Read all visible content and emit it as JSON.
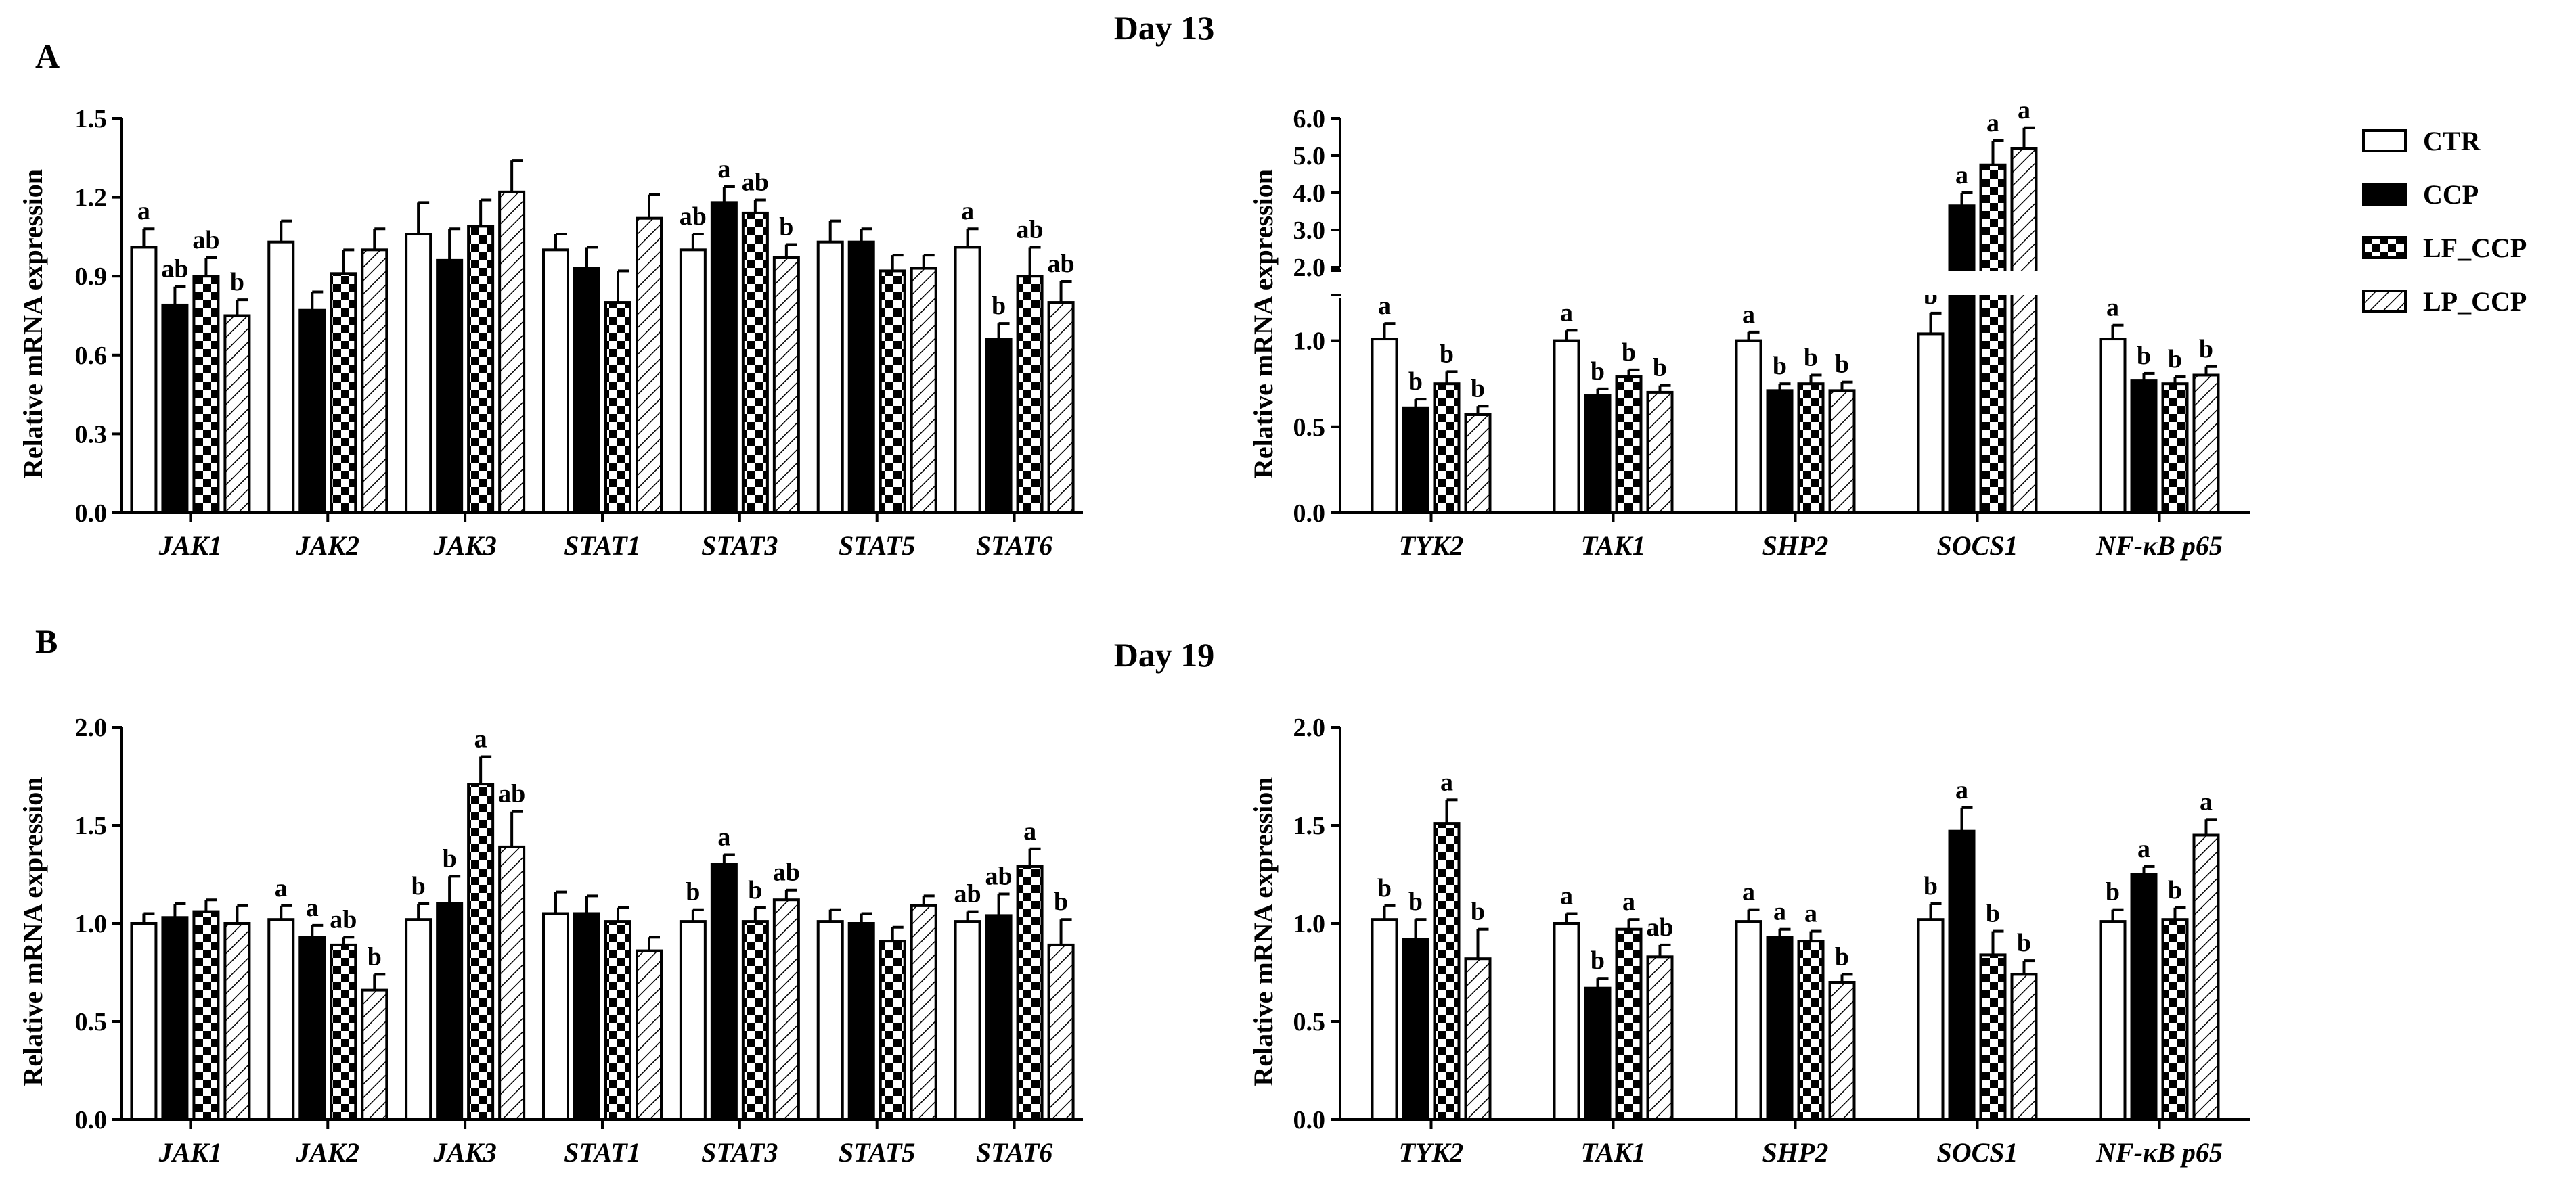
{
  "titles": {
    "day13": "Day 13",
    "day19": "Day 19",
    "panel_a": "A",
    "panel_b": "B"
  },
  "legend": [
    {
      "name": "CTR",
      "pattern": "open"
    },
    {
      "name": "CCP",
      "pattern": "solid"
    },
    {
      "name": "LF_CCP",
      "pattern": "checker"
    },
    {
      "name": "LP_CCP",
      "pattern": "hatch"
    }
  ],
  "chart_data": [
    {
      "type": "bar",
      "id": "A-left",
      "ylabel": "Relative mRNA expression",
      "ylim": [
        0,
        1.5
      ],
      "yticks": [
        "0.0",
        "0.3",
        "0.6",
        "0.9",
        "1.2",
        "1.5"
      ],
      "categories": [
        "JAK1",
        "JAK2",
        "JAK3",
        "STAT1",
        "STAT3",
        "STAT5",
        "STAT6"
      ],
      "series": [
        {
          "name": "CTR",
          "values": [
            1.01,
            1.03,
            1.06,
            1.0,
            1.0,
            1.03,
            1.01
          ],
          "errors": [
            0.07,
            0.08,
            0.12,
            0.06,
            0.06,
            0.08,
            0.07
          ]
        },
        {
          "name": "CCP",
          "values": [
            0.79,
            0.77,
            0.96,
            0.93,
            1.18,
            1.03,
            0.66
          ],
          "errors": [
            0.07,
            0.07,
            0.12,
            0.08,
            0.06,
            0.05,
            0.06
          ]
        },
        {
          "name": "LF_CCP",
          "values": [
            0.9,
            0.91,
            1.09,
            0.8,
            1.14,
            0.92,
            0.9
          ],
          "errors": [
            0.07,
            0.09,
            0.1,
            0.12,
            0.05,
            0.06,
            0.11
          ]
        },
        {
          "name": "LP_CCP",
          "values": [
            0.75,
            1.0,
            1.22,
            1.12,
            0.97,
            0.93,
            0.8
          ],
          "errors": [
            0.06,
            0.08,
            0.12,
            0.09,
            0.05,
            0.05,
            0.08
          ]
        }
      ],
      "significance": [
        [
          "a",
          "",
          "",
          "",
          "ab",
          "",
          "a"
        ],
        [
          "ab",
          "",
          "",
          "",
          "a",
          "",
          "b"
        ],
        [
          "ab",
          "",
          "",
          "",
          "ab",
          "",
          "ab"
        ],
        [
          "b",
          "",
          "",
          "",
          "b",
          "",
          "ab"
        ]
      ]
    },
    {
      "type": "bar",
      "id": "A-right",
      "ylabel": "Relative mRNA expression",
      "ylim": [
        0,
        6.0
      ],
      "axis_break": [
        1.25,
        2.0
      ],
      "yticks": [
        "0.0",
        "0.5",
        "1.0",
        "2.0",
        "3.0",
        "4.0",
        "5.0",
        "6.0"
      ],
      "categories": [
        "TYK2",
        "TAK1",
        "SHP2",
        "SOCS1",
        "NF-κB p65"
      ],
      "series": [
        {
          "name": "CTR",
          "values": [
            1.01,
            1.0,
            1.0,
            1.04,
            1.01
          ],
          "errors": [
            0.09,
            0.06,
            0.05,
            0.12,
            0.08
          ]
        },
        {
          "name": "CCP",
          "values": [
            0.61,
            0.68,
            0.71,
            3.65,
            0.77
          ],
          "errors": [
            0.05,
            0.04,
            0.04,
            0.35,
            0.04
          ]
        },
        {
          "name": "LF_CCP",
          "values": [
            0.75,
            0.79,
            0.75,
            4.75,
            0.75
          ],
          "errors": [
            0.07,
            0.04,
            0.05,
            0.65,
            0.04
          ]
        },
        {
          "name": "LP_CCP",
          "values": [
            0.57,
            0.7,
            0.71,
            5.2,
            0.8
          ],
          "errors": [
            0.05,
            0.04,
            0.05,
            0.55,
            0.05
          ]
        }
      ],
      "significance": [
        [
          "a",
          "a",
          "a",
          "b",
          "a"
        ],
        [
          "b",
          "b",
          "b",
          "a",
          "b"
        ],
        [
          "b",
          "b",
          "b",
          "a",
          "b"
        ],
        [
          "b",
          "b",
          "b",
          "a",
          "b"
        ]
      ]
    },
    {
      "type": "bar",
      "id": "B-left",
      "ylabel": "Relative mRNA expression",
      "ylim": [
        0,
        2.0
      ],
      "yticks": [
        "0.0",
        "0.5",
        "1.0",
        "1.5",
        "2.0"
      ],
      "categories": [
        "JAK1",
        "JAK2",
        "JAK3",
        "STAT1",
        "STAT3",
        "STAT5",
        "STAT6"
      ],
      "series": [
        {
          "name": "CTR",
          "values": [
            1.0,
            1.02,
            1.02,
            1.05,
            1.01,
            1.01,
            1.01
          ],
          "errors": [
            0.05,
            0.07,
            0.08,
            0.11,
            0.06,
            0.06,
            0.05
          ]
        },
        {
          "name": "CCP",
          "values": [
            1.03,
            0.93,
            1.1,
            1.05,
            1.3,
            1.0,
            1.04
          ],
          "errors": [
            0.07,
            0.06,
            0.14,
            0.09,
            0.05,
            0.05,
            0.11
          ]
        },
        {
          "name": "LF_CCP",
          "values": [
            1.06,
            0.89,
            1.71,
            1.01,
            1.01,
            0.91,
            1.29
          ],
          "errors": [
            0.06,
            0.04,
            0.14,
            0.07,
            0.07,
            0.07,
            0.09
          ]
        },
        {
          "name": "LP_CCP",
          "values": [
            1.0,
            0.66,
            1.39,
            0.86,
            1.12,
            1.09,
            0.89
          ],
          "errors": [
            0.09,
            0.08,
            0.18,
            0.07,
            0.05,
            0.05,
            0.13
          ]
        }
      ],
      "significance": [
        [
          "",
          "a",
          "b",
          "",
          "b",
          "",
          "ab"
        ],
        [
          "",
          "a",
          "b",
          "",
          "a",
          "",
          "ab"
        ],
        [
          "",
          "ab",
          "a",
          "",
          "b",
          "",
          "a"
        ],
        [
          "",
          "b",
          "ab",
          "",
          "ab",
          "",
          "b"
        ]
      ]
    },
    {
      "type": "bar",
      "id": "B-right",
      "ylabel": "Relative mRNA expression",
      "ylim": [
        0,
        2.0
      ],
      "yticks": [
        "0.0",
        "0.5",
        "1.0",
        "1.5",
        "2.0"
      ],
      "categories": [
        "TYK2",
        "TAK1",
        "SHP2",
        "SOCS1",
        "NF-κB p65"
      ],
      "series": [
        {
          "name": "CTR",
          "values": [
            1.02,
            1.0,
            1.01,
            1.02,
            1.01
          ],
          "errors": [
            0.07,
            0.05,
            0.06,
            0.08,
            0.06
          ]
        },
        {
          "name": "CCP",
          "values": [
            0.92,
            0.67,
            0.93,
            1.47,
            1.25
          ],
          "errors": [
            0.1,
            0.05,
            0.04,
            0.12,
            0.04
          ]
        },
        {
          "name": "LF_CCP",
          "values": [
            1.51,
            0.97,
            0.91,
            0.84,
            1.02
          ],
          "errors": [
            0.12,
            0.05,
            0.05,
            0.12,
            0.06
          ]
        },
        {
          "name": "LP_CCP",
          "values": [
            0.82,
            0.83,
            0.7,
            0.74,
            1.45
          ],
          "errors": [
            0.15,
            0.06,
            0.04,
            0.07,
            0.08
          ]
        }
      ],
      "significance": [
        [
          "b",
          "a",
          "a",
          "b",
          "b"
        ],
        [
          "b",
          "b",
          "a",
          "a",
          "a"
        ],
        [
          "a",
          "a",
          "a",
          "b",
          "b"
        ],
        [
          "b",
          "ab",
          "b",
          "b",
          "a"
        ]
      ]
    }
  ]
}
